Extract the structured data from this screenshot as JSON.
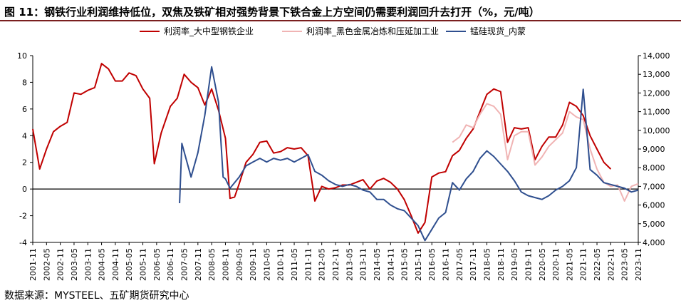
{
  "title": "图 11：钢铁行业利润维持低位，双焦及铁矿相对强势背景下铁合金上方空间仍需要利润回升去打开（%，元/吨）",
  "source": "数据来源：MYSTEEL、五矿期货研究中心",
  "chart_data": {
    "type": "line",
    "legend_position": "top",
    "x_ticks": [
      "2001-11",
      "2002-05",
      "2002-11",
      "2003-05",
      "2003-11",
      "2004-05",
      "2004-11",
      "2005-05",
      "2005-11",
      "2006-05",
      "2006-11",
      "2007-05",
      "2007-11",
      "2008-05",
      "2008-11",
      "2009-05",
      "2009-11",
      "2010-05",
      "2010-11",
      "2011-05",
      "2011-11",
      "2012-05",
      "2012-11",
      "2013-05",
      "2013-11",
      "2014-05",
      "2014-11",
      "2015-05",
      "2015-11",
      "2016-05",
      "2016-11",
      "2017-05",
      "2017-11",
      "2018-05",
      "2018-11",
      "2019-05",
      "2019-11",
      "2020-05",
      "2020-11",
      "2021-05",
      "2021-11",
      "2022-05",
      "2022-11",
      "2023-05",
      "2023-11"
    ],
    "y_left": {
      "min": -4,
      "max": 10,
      "ticks": [
        "-4",
        "-2",
        "0",
        "2",
        "4",
        "6",
        "8",
        "10"
      ]
    },
    "y_right": {
      "min": 4000,
      "max": 14000,
      "ticks": [
        "4,000",
        "5,000",
        "6,000",
        "7,000",
        "8,000",
        "9,000",
        "10,000",
        "11,000",
        "12,000",
        "13,000",
        "14,000"
      ]
    },
    "series": [
      {
        "name": "利润率_大中型钢铁企业",
        "axis": "left",
        "color": "#c00000",
        "points": [
          [
            "2001-11",
            4.5
          ],
          [
            "2002-02",
            1.5
          ],
          [
            "2002-05",
            3.0
          ],
          [
            "2002-08",
            4.3
          ],
          [
            "2002-11",
            4.7
          ],
          [
            "2003-02",
            5.0
          ],
          [
            "2003-05",
            7.2
          ],
          [
            "2003-08",
            7.1
          ],
          [
            "2003-11",
            7.4
          ],
          [
            "2004-02",
            7.6
          ],
          [
            "2004-05",
            9.4
          ],
          [
            "2004-08",
            9.0
          ],
          [
            "2004-11",
            8.1
          ],
          [
            "2005-02",
            8.1
          ],
          [
            "2005-05",
            8.7
          ],
          [
            "2005-08",
            8.5
          ],
          [
            "2005-11",
            7.5
          ],
          [
            "2006-02",
            6.8
          ],
          [
            "2006-04",
            1.9
          ],
          [
            "2006-07",
            4.2
          ],
          [
            "2006-11",
            6.2
          ],
          [
            "2007-02",
            6.8
          ],
          [
            "2007-05",
            8.6
          ],
          [
            "2007-08",
            8.0
          ],
          [
            "2007-11",
            7.6
          ],
          [
            "2008-02",
            6.3
          ],
          [
            "2008-05",
            7.5
          ],
          [
            "2008-08",
            5.9
          ],
          [
            "2008-11",
            3.8
          ],
          [
            "2009-01",
            -0.7
          ],
          [
            "2009-03",
            -0.6
          ],
          [
            "2009-05",
            0.4
          ],
          [
            "2009-08",
            2.0
          ],
          [
            "2009-11",
            2.6
          ],
          [
            "2010-02",
            3.5
          ],
          [
            "2010-05",
            3.6
          ],
          [
            "2010-08",
            2.7
          ],
          [
            "2010-11",
            2.8
          ],
          [
            "2011-02",
            3.1
          ],
          [
            "2011-05",
            3.0
          ],
          [
            "2011-08",
            3.1
          ],
          [
            "2011-11",
            2.5
          ],
          [
            "2012-02",
            -0.9
          ],
          [
            "2012-05",
            0.2
          ],
          [
            "2012-08",
            0.0
          ],
          [
            "2012-11",
            0.1
          ],
          [
            "2013-02",
            0.3
          ],
          [
            "2013-05",
            0.3
          ],
          [
            "2013-08",
            0.5
          ],
          [
            "2013-11",
            0.7
          ],
          [
            "2014-02",
            0.0
          ],
          [
            "2014-05",
            0.6
          ],
          [
            "2014-08",
            0.8
          ],
          [
            "2014-11",
            0.5
          ],
          [
            "2015-02",
            0.0
          ],
          [
            "2015-05",
            -0.8
          ],
          [
            "2015-08",
            -2.0
          ],
          [
            "2015-11",
            -3.3
          ],
          [
            "2016-02",
            -2.5
          ],
          [
            "2016-05",
            0.9
          ],
          [
            "2016-08",
            1.2
          ],
          [
            "2016-11",
            1.3
          ],
          [
            "2017-02",
            2.5
          ],
          [
            "2017-05",
            2.9
          ],
          [
            "2017-08",
            3.8
          ],
          [
            "2017-11",
            4.5
          ],
          [
            "2018-02",
            5.8
          ],
          [
            "2018-05",
            7.1
          ],
          [
            "2018-08",
            7.5
          ],
          [
            "2018-11",
            7.3
          ],
          [
            "2019-02",
            3.5
          ],
          [
            "2019-05",
            4.6
          ],
          [
            "2019-08",
            4.5
          ],
          [
            "2019-11",
            4.6
          ],
          [
            "2020-02",
            2.2
          ],
          [
            "2020-05",
            3.2
          ],
          [
            "2020-08",
            3.9
          ],
          [
            "2020-11",
            3.9
          ],
          [
            "2021-02",
            4.8
          ],
          [
            "2021-05",
            6.5
          ],
          [
            "2021-08",
            6.2
          ],
          [
            "2021-11",
            5.5
          ],
          [
            "2022-02",
            4.0
          ],
          [
            "2022-05",
            3.0
          ],
          [
            "2022-08",
            2.0
          ],
          [
            "2022-11",
            1.5
          ]
        ]
      },
      {
        "name": "利润率_黑色金属冶炼和压延加工业",
        "axis": "left",
        "color": "#f0b4b4",
        "points": [
          [
            "2017-02",
            3.5
          ],
          [
            "2017-05",
            3.9
          ],
          [
            "2017-08",
            4.8
          ],
          [
            "2017-11",
            4.6
          ],
          [
            "2018-02",
            5.6
          ],
          [
            "2018-05",
            6.4
          ],
          [
            "2018-08",
            6.2
          ],
          [
            "2018-11",
            5.6
          ],
          [
            "2019-02",
            2.2
          ],
          [
            "2019-05",
            4.0
          ],
          [
            "2019-08",
            4.3
          ],
          [
            "2019-11",
            4.3
          ],
          [
            "2020-02",
            1.8
          ],
          [
            "2020-05",
            2.4
          ],
          [
            "2020-08",
            3.2
          ],
          [
            "2020-11",
            3.7
          ],
          [
            "2021-02",
            4.2
          ],
          [
            "2021-05",
            5.8
          ],
          [
            "2021-08",
            5.4
          ],
          [
            "2021-11",
            5.2
          ],
          [
            "2022-02",
            3.0
          ],
          [
            "2022-05",
            1.5
          ],
          [
            "2022-08",
            0.5
          ],
          [
            "2022-11",
            0.2
          ],
          [
            "2023-02",
            0.3
          ],
          [
            "2023-05",
            -0.9
          ],
          [
            "2023-08",
            0.2
          ],
          [
            "2023-11",
            0.4
          ]
        ]
      },
      {
        "name": "锰硅现货_内蒙",
        "axis": "right",
        "color": "#2f4f8f",
        "points": [
          [
            "2007-03",
            6100
          ],
          [
            "2007-04",
            9300
          ],
          [
            "2007-08",
            7500
          ],
          [
            "2007-11",
            8800
          ],
          [
            "2008-02",
            10800
          ],
          [
            "2008-05",
            13400
          ],
          [
            "2008-08",
            11500
          ],
          [
            "2008-10",
            7500
          ],
          [
            "2008-11",
            7400
          ],
          [
            "2009-01",
            6900
          ],
          [
            "2009-05",
            7500
          ],
          [
            "2009-08",
            8100
          ],
          [
            "2009-11",
            8300
          ],
          [
            "2010-02",
            8500
          ],
          [
            "2010-05",
            8300
          ],
          [
            "2010-08",
            8500
          ],
          [
            "2010-11",
            8400
          ],
          [
            "2011-02",
            8500
          ],
          [
            "2011-05",
            8300
          ],
          [
            "2011-08",
            8500
          ],
          [
            "2011-11",
            8700
          ],
          [
            "2012-02",
            7800
          ],
          [
            "2012-05",
            7600
          ],
          [
            "2012-08",
            7300
          ],
          [
            "2012-11",
            7100
          ],
          [
            "2013-02",
            7000
          ],
          [
            "2013-05",
            7100
          ],
          [
            "2013-08",
            7000
          ],
          [
            "2013-11",
            6800
          ],
          [
            "2014-02",
            6700
          ],
          [
            "2014-05",
            6300
          ],
          [
            "2014-08",
            6300
          ],
          [
            "2014-11",
            6000
          ],
          [
            "2015-02",
            5800
          ],
          [
            "2015-05",
            5700
          ],
          [
            "2015-08",
            5300
          ],
          [
            "2015-11",
            4900
          ],
          [
            "2016-02",
            4100
          ],
          [
            "2016-05",
            4700
          ],
          [
            "2016-08",
            5300
          ],
          [
            "2016-11",
            5600
          ],
          [
            "2017-02",
            7200
          ],
          [
            "2017-05",
            6800
          ],
          [
            "2017-08",
            7400
          ],
          [
            "2017-11",
            7800
          ],
          [
            "2018-02",
            8500
          ],
          [
            "2018-05",
            8900
          ],
          [
            "2018-08",
            8600
          ],
          [
            "2018-11",
            8200
          ],
          [
            "2019-02",
            7800
          ],
          [
            "2019-05",
            7300
          ],
          [
            "2019-08",
            6700
          ],
          [
            "2019-11",
            6500
          ],
          [
            "2020-02",
            6400
          ],
          [
            "2020-05",
            6300
          ],
          [
            "2020-08",
            6500
          ],
          [
            "2020-11",
            6800
          ],
          [
            "2021-02",
            7000
          ],
          [
            "2021-05",
            7300
          ],
          [
            "2021-08",
            8000
          ],
          [
            "2021-11",
            12200
          ],
          [
            "2022-02",
            7900
          ],
          [
            "2022-05",
            7600
          ],
          [
            "2022-08",
            7200
          ],
          [
            "2022-11",
            7100
          ],
          [
            "2023-02",
            7000
          ],
          [
            "2023-05",
            6900
          ],
          [
            "2023-08",
            6700
          ],
          [
            "2023-11",
            6800
          ]
        ]
      }
    ]
  }
}
